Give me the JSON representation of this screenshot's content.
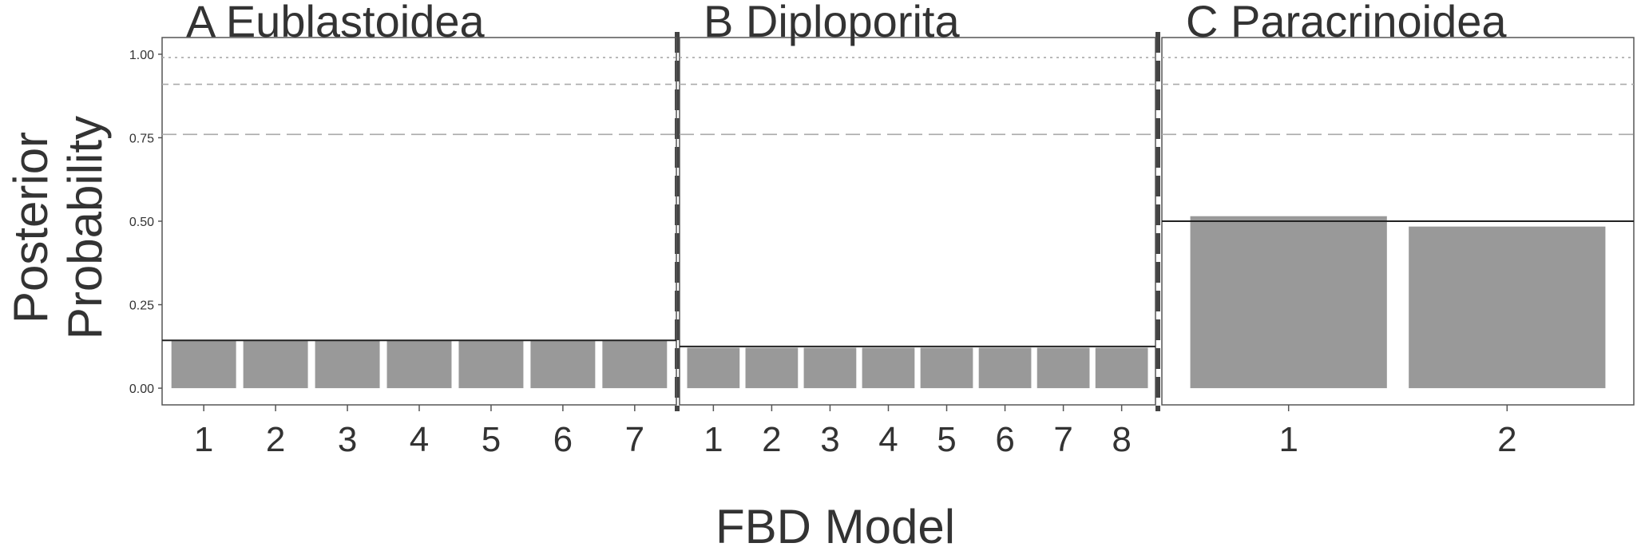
{
  "chart_data": [
    {
      "type": "bar",
      "title": "A Eublastoidea",
      "y_label": "Posterior Probability",
      "categories": [
        "1",
        "2",
        "3",
        "4",
        "5",
        "6",
        "7"
      ],
      "values": [
        0.143,
        0.143,
        0.143,
        0.143,
        0.143,
        0.143,
        0.143
      ],
      "color": "#999999",
      "ylim": [
        -0.05,
        1.05
      ],
      "yticks": [
        {
          "value": 0,
          "label": "0.00"
        },
        {
          "value": 0.25,
          "label": "0.25"
        },
        {
          "value": 0.5,
          "label": "0.50"
        },
        {
          "value": 0.75,
          "label": "0.75"
        },
        {
          "value": 1,
          "label": "1.00"
        }
      ],
      "reference_lines": [
        {
          "value": 0.143,
          "style": "solid"
        },
        {
          "value": 0.76,
          "style": "longdash"
        },
        {
          "value": 0.91,
          "style": "dashed"
        },
        {
          "value": 0.99,
          "style": "dotted"
        }
      ]
    },
    {
      "type": "bar",
      "title": "B Diploporita",
      "x_label": "FBD Model",
      "categories": [
        "1",
        "2",
        "3",
        "4",
        "5",
        "6",
        "7",
        "8"
      ],
      "values": [
        0.121,
        0.121,
        0.121,
        0.121,
        0.121,
        0.121,
        0.121,
        0.121
      ],
      "color": "#999999",
      "ylim": [
        -0.05,
        1.05
      ],
      "reference_lines": [
        {
          "value": 0.125,
          "style": "solid"
        },
        {
          "value": 0.76,
          "style": "longdash"
        },
        {
          "value": 0.91,
          "style": "dashed"
        },
        {
          "value": 0.99,
          "style": "dotted"
        }
      ]
    },
    {
      "type": "bar",
      "title": "C Paracrinoidea",
      "categories": [
        "1",
        "2"
      ],
      "values": [
        0.515,
        0.484
      ],
      "color": "#999999",
      "ylim": [
        -0.05,
        1.05
      ],
      "reference_lines": [
        {
          "value": 0.5,
          "style": "solid"
        },
        {
          "value": 0.76,
          "style": "longdash"
        },
        {
          "value": 0.91,
          "style": "dashed"
        },
        {
          "value": 0.99,
          "style": "dotted"
        }
      ]
    }
  ]
}
